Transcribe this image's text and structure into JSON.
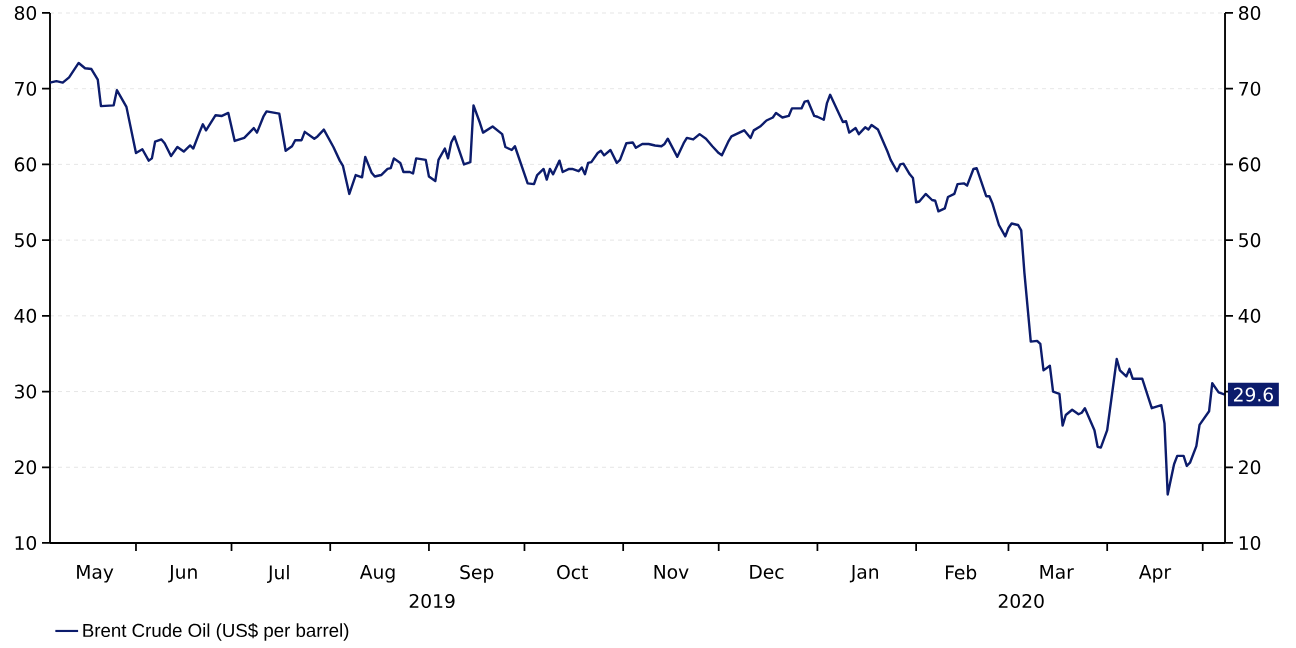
{
  "chart_data": {
    "type": "line",
    "x": [
      "2019-05-05",
      "2019-05-07",
      "2019-05-09",
      "2019-05-11",
      "2019-05-14",
      "2019-05-16",
      "2019-05-18",
      "2019-05-20",
      "2019-05-21",
      "2019-05-25",
      "2019-05-26",
      "2019-05-29",
      "2019-06-01",
      "2019-06-03",
      "2019-06-05",
      "2019-06-06",
      "2019-06-07",
      "2019-06-09",
      "2019-06-10",
      "2019-06-12",
      "2019-06-14",
      "2019-06-16",
      "2019-06-18",
      "2019-06-19",
      "2019-06-21",
      "2019-06-22",
      "2019-06-23",
      "2019-06-26",
      "2019-06-28",
      "2019-06-30",
      "2019-07-02",
      "2019-07-05",
      "2019-07-08",
      "2019-07-09",
      "2019-07-11",
      "2019-07-12",
      "2019-07-16",
      "2019-07-18",
      "2019-07-20",
      "2019-07-21",
      "2019-07-23",
      "2019-07-24",
      "2019-07-27",
      "2019-07-28",
      "2019-07-30",
      "2019-08-02",
      "2019-08-04",
      "2019-08-05",
      "2019-08-07",
      "2019-08-09",
      "2019-08-11",
      "2019-08-12",
      "2019-08-14",
      "2019-08-15",
      "2019-08-17",
      "2019-08-19",
      "2019-08-20",
      "2019-08-21",
      "2019-08-23",
      "2019-08-24",
      "2019-08-26",
      "2019-08-27",
      "2019-08-28",
      "2019-08-31",
      "2019-09-01",
      "2019-09-03",
      "2019-09-04",
      "2019-09-06",
      "2019-09-07",
      "2019-09-08",
      "2019-09-09",
      "2019-09-12",
      "2019-09-14",
      "2019-09-15",
      "2019-09-17",
      "2019-09-18",
      "2019-09-21",
      "2019-09-24",
      "2019-09-25",
      "2019-09-27",
      "2019-09-28",
      "2019-10-02",
      "2019-10-04",
      "2019-10-05",
      "2019-10-07",
      "2019-10-08",
      "2019-10-09",
      "2019-10-10",
      "2019-10-12",
      "2019-10-13",
      "2019-10-15",
      "2019-10-16",
      "2019-10-18",
      "2019-10-19",
      "2019-10-20",
      "2019-10-21",
      "2019-10-22",
      "2019-10-24",
      "2019-10-25",
      "2019-10-26",
      "2019-10-28",
      "2019-10-30",
      "2019-10-31",
      "2019-11-02",
      "2019-11-04",
      "2019-11-05",
      "2019-11-07",
      "2019-11-09",
      "2019-11-11",
      "2019-11-13",
      "2019-11-14",
      "2019-11-15",
      "2019-11-18",
      "2019-11-20",
      "2019-11-21",
      "2019-11-23",
      "2019-11-25",
      "2019-11-27",
      "2019-11-29",
      "2019-12-01",
      "2019-12-02",
      "2019-12-04",
      "2019-12-05",
      "2019-12-07",
      "2019-12-09",
      "2019-12-11",
      "2019-12-12",
      "2019-12-14",
      "2019-12-16",
      "2019-12-18",
      "2019-12-19",
      "2019-12-21",
      "2019-12-23",
      "2019-12-24",
      "2019-12-27",
      "2019-12-28",
      "2019-12-29",
      "2019-12-31",
      "2020-01-01",
      "2020-01-03",
      "2020-01-04",
      "2020-01-05",
      "2020-01-08",
      "2020-01-09",
      "2020-01-10",
      "2020-01-11",
      "2020-01-13",
      "2020-01-14",
      "2020-01-16",
      "2020-01-17",
      "2020-01-18",
      "2020-01-20",
      "2020-01-23",
      "2020-01-24",
      "2020-01-26",
      "2020-01-27",
      "2020-01-28",
      "2020-01-30",
      "2020-01-31",
      "2020-02-01",
      "2020-02-02",
      "2020-02-04",
      "2020-02-06",
      "2020-02-07",
      "2020-02-08",
      "2020-02-10",
      "2020-02-11",
      "2020-02-13",
      "2020-02-14",
      "2020-02-16",
      "2020-02-17",
      "2020-02-19",
      "2020-02-20",
      "2020-02-21",
      "2020-02-23",
      "2020-02-24",
      "2020-02-25",
      "2020-02-27",
      "2020-02-29",
      "2020-03-01",
      "2020-03-02",
      "2020-03-04",
      "2020-03-05",
      "2020-03-06",
      "2020-03-08",
      "2020-03-10",
      "2020-03-11",
      "2020-03-12",
      "2020-03-14",
      "2020-03-15",
      "2020-03-17",
      "2020-03-18",
      "2020-03-19",
      "2020-03-21",
      "2020-03-23",
      "2020-03-24",
      "2020-03-25",
      "2020-03-28",
      "2020-03-29",
      "2020-03-30",
      "2020-04-01",
      "2020-04-04",
      "2020-04-05",
      "2020-04-07",
      "2020-04-08",
      "2020-04-09",
      "2020-04-12",
      "2020-04-15",
      "2020-04-18",
      "2020-04-19",
      "2020-04-20",
      "2020-04-22",
      "2020-04-23",
      "2020-04-25",
      "2020-04-26",
      "2020-04-27",
      "2020-04-29",
      "2020-04-30",
      "2020-05-03",
      "2020-05-04",
      "2020-05-06",
      "2020-05-08"
    ],
    "series": [
      {
        "name": "Brent Crude Oil (US$ per barrel)",
        "color": "#0c1c6c",
        "values": [
          70.8,
          71.0,
          70.8,
          71.5,
          73.4,
          72.7,
          72.6,
          71.2,
          67.7,
          67.8,
          69.8,
          67.6,
          61.5,
          62.0,
          60.5,
          60.8,
          63.0,
          63.3,
          62.8,
          61.1,
          62.3,
          61.7,
          62.5,
          62.1,
          64.3,
          65.3,
          64.5,
          66.5,
          66.4,
          66.8,
          63.1,
          63.5,
          64.8,
          64.2,
          66.3,
          67.0,
          66.7,
          61.8,
          62.4,
          63.2,
          63.2,
          64.3,
          63.4,
          63.7,
          64.6,
          62.3,
          60.5,
          59.8,
          56.1,
          58.6,
          58.3,
          61.0,
          58.9,
          58.4,
          58.6,
          59.4,
          59.5,
          60.8,
          60.2,
          59.0,
          59.0,
          58.8,
          60.8,
          60.6,
          58.4,
          57.8,
          60.6,
          62.1,
          60.8,
          62.9,
          63.7,
          60.0,
          60.3,
          67.8,
          65.5,
          64.2,
          65.0,
          64.0,
          62.3,
          61.9,
          62.4,
          57.5,
          57.4,
          58.6,
          59.4,
          58.0,
          59.4,
          58.7,
          60.5,
          59.0,
          59.4,
          59.4,
          59.1,
          59.6,
          58.7,
          60.2,
          60.3,
          61.5,
          61.8,
          61.2,
          61.9,
          60.2,
          60.6,
          62.8,
          62.9,
          62.2,
          62.7,
          62.7,
          62.5,
          62.4,
          62.7,
          63.4,
          61.0,
          62.8,
          63.5,
          63.3,
          64.0,
          63.4,
          62.4,
          61.5,
          61.2,
          63.0,
          63.7,
          64.1,
          64.5,
          63.5,
          64.5,
          65.0,
          65.8,
          66.2,
          66.8,
          66.2,
          66.4,
          67.4,
          67.4,
          68.3,
          68.4,
          66.4,
          66.3,
          65.9,
          68.1,
          69.2,
          66.5,
          65.6,
          65.7,
          64.2,
          64.8,
          64.0,
          64.9,
          64.6,
          65.2,
          64.6,
          61.7,
          60.6,
          59.1,
          60.0,
          60.1,
          58.7,
          58.2,
          55.0,
          55.1,
          56.1,
          55.3,
          55.2,
          53.8,
          54.2,
          55.7,
          56.1,
          57.4,
          57.5,
          57.2,
          59.4,
          59.5,
          58.3,
          55.8,
          55.8,
          54.8,
          52.0,
          50.5,
          51.6,
          52.2,
          52.0,
          51.3,
          45.7,
          36.6,
          36.7,
          36.3,
          32.8,
          33.4,
          30.0,
          29.7,
          25.5,
          26.9,
          27.6,
          27.0,
          27.2,
          27.8,
          24.9,
          22.7,
          22.6,
          24.9,
          34.3,
          32.8,
          32.0,
          33.0,
          31.7,
          31.7,
          27.8,
          28.2,
          25.8,
          16.4,
          20.4,
          21.5,
          21.5,
          20.2,
          20.6,
          22.8,
          25.6,
          27.4,
          31.1,
          29.9,
          29.6
        ]
      }
    ],
    "xlim": [
      "2019-05-05",
      "2020-05-08"
    ],
    "xticks": [
      {
        "value": "2019-05-19",
        "label": "May"
      },
      {
        "value": "2019-06-01",
        "label": null
      },
      {
        "value": "2019-06-16",
        "label": "Jun"
      },
      {
        "value": "2019-07-01",
        "label": null
      },
      {
        "value": "2019-07-16",
        "label": "Jul"
      },
      {
        "value": "2019-08-01",
        "label": null
      },
      {
        "value": "2019-08-16",
        "label": "Aug"
      },
      {
        "value": "2019-09-01",
        "label": null
      },
      {
        "value": "2019-09-16",
        "label": "Sep"
      },
      {
        "value": "2019-10-01",
        "label": null
      },
      {
        "value": "2019-10-16",
        "label": "Oct"
      },
      {
        "value": "2019-11-01",
        "label": null
      },
      {
        "value": "2019-11-16",
        "label": "Nov"
      },
      {
        "value": "2019-12-01",
        "label": null
      },
      {
        "value": "2019-12-16",
        "label": "Dec"
      },
      {
        "value": "2020-01-01",
        "label": null
      },
      {
        "value": "2020-01-16",
        "label": "Jan"
      },
      {
        "value": "2020-02-01",
        "label": null
      },
      {
        "value": "2020-02-15",
        "label": "Feb"
      },
      {
        "value": "2020-03-01",
        "label": null
      },
      {
        "value": "2020-03-16",
        "label": "Mar"
      },
      {
        "value": "2020-04-01",
        "label": null
      },
      {
        "value": "2020-04-16",
        "label": "Apr"
      },
      {
        "value": "2020-05-01",
        "label": null
      }
    ],
    "ylim": [
      10,
      80
    ],
    "yticks": [
      10,
      20,
      30,
      40,
      50,
      60,
      70,
      80
    ],
    "y2lim": [
      10,
      80
    ],
    "y2ticks": [
      10,
      20,
      {
        "value": 30,
        "label": null
      },
      40,
      50,
      60,
      70,
      80
    ],
    "grid": "y",
    "legend": "bottom",
    "annotations": [
      "2019",
      "2020",
      {
        "text": "29.6",
        "x": "2020-05-08",
        "y": 29.6
      }
    ]
  }
}
